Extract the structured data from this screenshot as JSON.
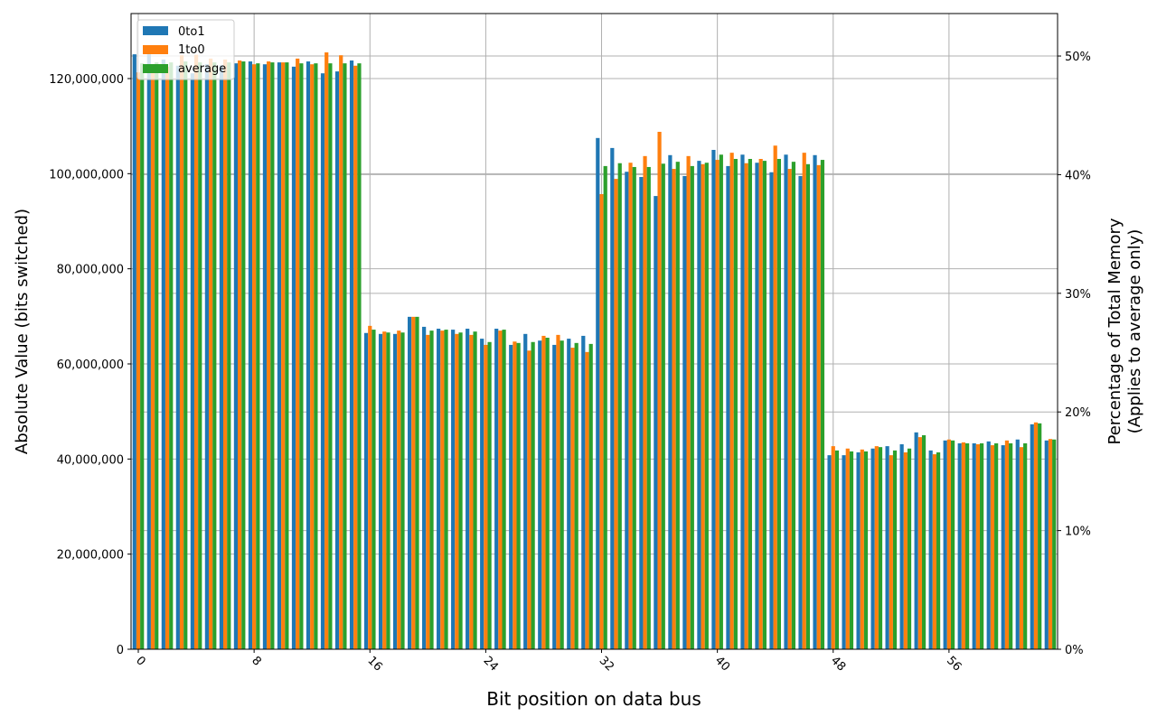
{
  "chart_data": {
    "type": "bar",
    "title": "",
    "xlabel": "Bit position on data bus",
    "ylabel": "Absolute Value (bits switched)",
    "y2label_line1": "Percentage of Total Memory",
    "y2label_line2": "(Applies to average only)",
    "ylim": [
      0,
      133670000
    ],
    "y2lim": [
      0,
      53.58
    ],
    "grid": true,
    "legend_position": "upper left",
    "x_tick_labels": [
      "0",
      "8",
      "16",
      "24",
      "32",
      "40",
      "48",
      "56"
    ],
    "x_tick_positions": [
      0,
      8,
      16,
      24,
      32,
      40,
      48,
      56
    ],
    "y_tick_labels": [
      "0",
      "20,000,000",
      "40,000,000",
      "60,000,000",
      "80,000,000",
      "100,000,000",
      "120,000,000"
    ],
    "y_tick_values": [
      0,
      20000000,
      40000000,
      60000000,
      80000000,
      100000000,
      120000000
    ],
    "y2_tick_labels": [
      "0%",
      "10%",
      "20%",
      "30%",
      "40%",
      "50%"
    ],
    "y2_tick_values": [
      0,
      10,
      20,
      30,
      40,
      50
    ],
    "categories": [
      0,
      1,
      2,
      3,
      4,
      5,
      6,
      7,
      8,
      9,
      10,
      11,
      12,
      13,
      14,
      15,
      16,
      17,
      18,
      19,
      20,
      21,
      22,
      23,
      24,
      25,
      26,
      27,
      28,
      29,
      30,
      31,
      32,
      33,
      34,
      35,
      36,
      37,
      38,
      39,
      40,
      41,
      42,
      43,
      44,
      45,
      46,
      47,
      48,
      49,
      50,
      51,
      52,
      53,
      54,
      55,
      56,
      57,
      58,
      59,
      60,
      61,
      62,
      63
    ],
    "series": [
      {
        "name": "0to1",
        "color": "#1f77b4",
        "values": [
          125.1,
          125.1,
          124.0,
          122.7,
          121.1,
          123.0,
          122.8,
          123.2,
          123.6,
          123.0,
          123.4,
          122.5,
          123.6,
          121.1,
          121.5,
          123.8,
          66.5,
          66.3,
          66.3,
          69.9,
          67.8,
          67.4,
          67.2,
          67.4,
          65.3,
          67.4,
          64.0,
          66.3,
          64.9,
          64.0,
          65.3,
          65.9,
          107.5,
          105.4,
          100.4,
          99.3,
          95.3,
          103.9,
          99.5,
          102.7,
          105.0,
          101.6,
          104.0,
          102.3,
          100.3,
          104.0,
          99.5,
          103.9,
          40.8,
          40.8,
          41.4,
          42.2,
          42.7,
          43.1,
          45.6,
          41.8,
          43.9,
          43.3,
          43.3,
          43.7,
          42.9,
          44.1,
          47.3,
          43.9
        ]
      },
      {
        "name": "1to0",
        "color": "#ff7f0e",
        "values": [
          121.3,
          121.5,
          122.5,
          124.9,
          125.0,
          124.2,
          124.0,
          123.8,
          123.0,
          123.6,
          123.4,
          124.2,
          123.0,
          125.5,
          124.9,
          122.7,
          68.0,
          66.8,
          67.0,
          69.9,
          66.1,
          67.0,
          66.3,
          66.1,
          64.0,
          67.0,
          64.7,
          62.8,
          65.9,
          66.1,
          63.4,
          62.5,
          95.7,
          98.9,
          102.3,
          103.7,
          108.8,
          101.0,
          103.7,
          102.0,
          102.9,
          104.4,
          102.2,
          103.1,
          105.9,
          101.0,
          104.4,
          101.8,
          42.7,
          42.2,
          42.0,
          42.7,
          40.8,
          41.4,
          44.6,
          41.0,
          44.1,
          43.5,
          43.1,
          42.9,
          43.9,
          42.5,
          47.7,
          44.2
        ]
      },
      {
        "name": "average",
        "color": "#2ca02c",
        "values": [
          123.2,
          123.4,
          123.4,
          123.6,
          123.4,
          123.4,
          123.4,
          123.6,
          123.2,
          123.4,
          123.4,
          123.2,
          123.2,
          123.2,
          123.2,
          123.2,
          67.2,
          66.6,
          66.6,
          69.9,
          67.0,
          67.2,
          66.6,
          66.8,
          64.6,
          67.2,
          64.4,
          64.6,
          65.5,
          64.9,
          64.4,
          64.2,
          101.6,
          102.2,
          101.4,
          101.4,
          102.1,
          102.5,
          101.6,
          102.3,
          104.0,
          103.1,
          103.1,
          102.7,
          103.1,
          102.5,
          102.0,
          102.9,
          41.8,
          41.6,
          41.6,
          42.5,
          41.8,
          42.2,
          45.0,
          41.4,
          43.9,
          43.3,
          43.3,
          43.3,
          43.3,
          43.3,
          47.5,
          44.1
        ]
      }
    ],
    "value_units": "millions of bits switched"
  }
}
